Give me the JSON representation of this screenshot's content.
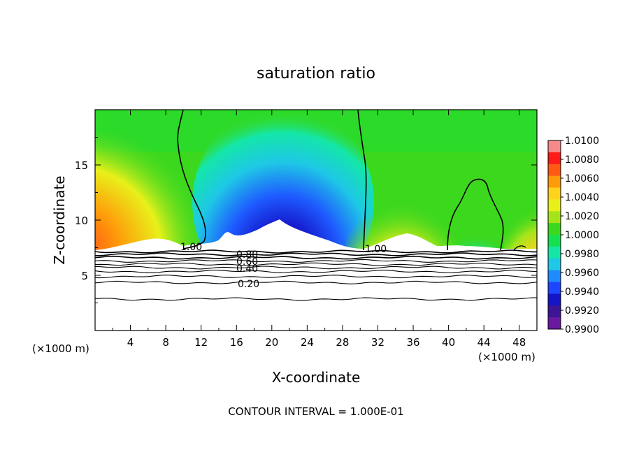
{
  "chart_data": {
    "type": "heatmap",
    "title": "saturation ratio",
    "xlabel": "X-coordinate",
    "ylabel": "Z-coordinate",
    "x_unit": "(×1000 m)",
    "x_unit_right": "(×1000 m)",
    "xlim": [
      0,
      50
    ],
    "ylim": [
      0,
      20
    ],
    "x_ticks": [
      "4",
      "8",
      "12",
      "16",
      "20",
      "24",
      "28",
      "32",
      "36",
      "40",
      "44",
      "48"
    ],
    "y_ticks": [
      "5",
      "10",
      "15"
    ],
    "footer": "CONTOUR INTERVAL = 1.000E-01",
    "colorbar": {
      "labels": [
        "1.0100",
        "1.0080",
        "1.0060",
        "1.0040",
        "1.0020",
        "1.0000",
        "0.9980",
        "0.9960",
        "0.9940",
        "0.9920",
        "0.9900"
      ],
      "colors": [
        "#f58a8a",
        "#ff1a1a",
        "#ff5a14",
        "#ff9a0a",
        "#ffd21e",
        "#e8f01a",
        "#a6e41a",
        "#3cd81e",
        "#14e050",
        "#14e6a8",
        "#1ec8e6",
        "#1e8cff",
        "#1e46ff",
        "#1414c8",
        "#3c1496",
        "#6a1aa0"
      ]
    },
    "contour_labels": [
      "1.00",
      "0.80",
      "0.60",
      "0.40",
      "0.20",
      "1.00"
    ],
    "ground_contours_z": [
      7.15,
      6.9,
      6.6,
      6.3,
      6.0,
      5.7,
      5.35,
      4.9,
      4.35,
      2.85
    ]
  }
}
